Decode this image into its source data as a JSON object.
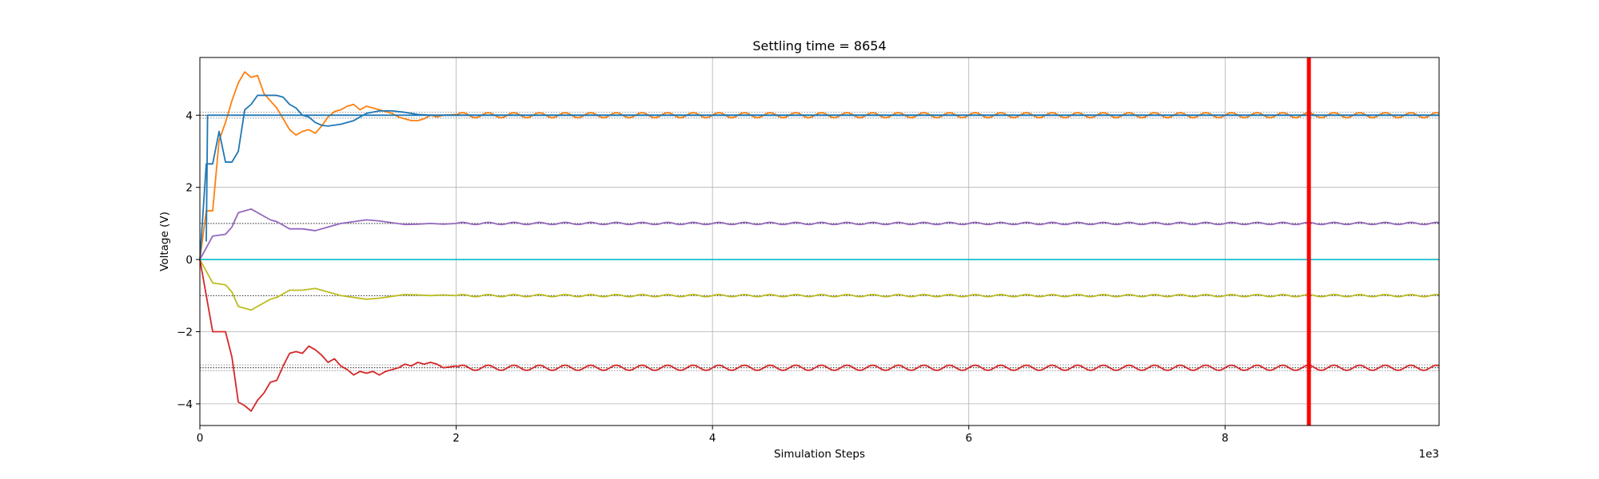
{
  "chart_data": {
    "type": "line",
    "title": "Settling time = 8654",
    "xlabel": "Simulation Steps",
    "ylabel": "Voltage (V)",
    "x_offset_label": "1e3",
    "xlim": [
      0,
      9670
    ],
    "ylim": [
      -4.6,
      5.6
    ],
    "x_ticks": [
      0,
      2000,
      4000,
      6000,
      8000
    ],
    "x_tick_labels": [
      "0",
      "2",
      "4",
      "6",
      "8"
    ],
    "y_ticks": [
      -4,
      -2,
      0,
      2,
      4
    ],
    "y_tick_labels": [
      "−4",
      "−2",
      "0",
      "2",
      "4"
    ],
    "grid": true,
    "settling_marker": {
      "x": 8654,
      "color": "#ff0000"
    },
    "reference_lines": [
      {
        "y": 4.08,
        "color": "#808080"
      },
      {
        "y": 4.0,
        "color": "#000000"
      },
      {
        "y": 3.92,
        "color": "#808080"
      },
      {
        "y": 1.0,
        "color": "#000000"
      },
      {
        "y": -1.0,
        "color": "#000000"
      },
      {
        "y": -2.92,
        "color": "#808080"
      },
      {
        "y": -3.0,
        "color": "#000000"
      },
      {
        "y": -3.08,
        "color": "#808080"
      }
    ],
    "series": [
      {
        "color": "#ff7f0e",
        "x": [
          0,
          50,
          100,
          150,
          200,
          250,
          300,
          350,
          400,
          450,
          500,
          550,
          600,
          650,
          700,
          750,
          800,
          850,
          900,
          950,
          1000,
          1050,
          1100,
          1150,
          1200,
          1250,
          1300,
          1350,
          1400,
          1450,
          1500,
          1550,
          1600,
          1650,
          1700,
          1750,
          1800,
          1850,
          1900,
          2000
        ],
        "y": [
          0,
          1.35,
          1.35,
          3.3,
          3.8,
          4.4,
          4.9,
          5.2,
          5.05,
          5.1,
          4.6,
          4.4,
          4.2,
          3.9,
          3.6,
          3.45,
          3.55,
          3.6,
          3.5,
          3.7,
          3.95,
          4.1,
          4.15,
          4.25,
          4.3,
          4.15,
          4.25,
          4.2,
          4.15,
          4.1,
          4.05,
          3.95,
          3.9,
          3.85,
          3.85,
          3.9,
          4.0,
          3.95,
          4.0,
          4.02
        ],
        "oscillation": {
          "center": 4.0,
          "amplitude": 0.07,
          "period": 200,
          "from_x": 2000
        }
      },
      {
        "color": "#1f77b4",
        "x": [
          0,
          50,
          100,
          150,
          200,
          250,
          300,
          350,
          400,
          450,
          500,
          550,
          600,
          650,
          700,
          750,
          800,
          850,
          900,
          950,
          1000,
          1100,
          1200,
          1300,
          1400,
          1500,
          1600,
          1700,
          1800,
          1900,
          2000
        ],
        "y": [
          0,
          2.65,
          2.65,
          3.55,
          2.7,
          2.7,
          3.0,
          4.15,
          4.3,
          4.55,
          4.55,
          4.55,
          4.55,
          4.5,
          4.3,
          4.2,
          4.0,
          3.95,
          3.8,
          3.72,
          3.7,
          3.75,
          3.85,
          4.05,
          4.12,
          4.12,
          4.08,
          4.02,
          4.0,
          4.0,
          4.0
        ],
        "oscillation": {
          "center": 4.0,
          "amplitude": 0.0,
          "period": 200,
          "from_x": 2000
        }
      },
      {
        "color": "#1f77b4",
        "x": [
          50,
          60,
          80,
          100,
          140
        ],
        "y": [
          0.5,
          4.0,
          4.0,
          4.0,
          4.0
        ],
        "oscillation": {
          "center": 4.0,
          "amplitude": 0.0,
          "period": 200,
          "from_x": 140
        }
      },
      {
        "color": "#9467bd",
        "x": [
          0,
          100,
          200,
          250,
          300,
          350,
          400,
          500,
          550,
          600,
          700,
          800,
          900,
          1000,
          1100,
          1200,
          1300,
          1400,
          1500,
          1600,
          1700,
          1800,
          1900,
          2000
        ],
        "y": [
          0,
          0.65,
          0.7,
          0.9,
          1.3,
          1.35,
          1.4,
          1.2,
          1.1,
          1.05,
          0.85,
          0.85,
          0.8,
          0.9,
          1.0,
          1.05,
          1.1,
          1.07,
          1.02,
          0.97,
          0.98,
          1.0,
          0.98,
          1.0
        ],
        "oscillation": {
          "center": 1.0,
          "amplitude": 0.03,
          "period": 200,
          "from_x": 2000
        }
      },
      {
        "color": "#17becf",
        "x": [
          0,
          9670
        ],
        "y": [
          0,
          0
        ]
      },
      {
        "color": "#bcbd22",
        "x": [
          0,
          100,
          200,
          250,
          300,
          350,
          400,
          500,
          550,
          600,
          700,
          800,
          900,
          1000,
          1100,
          1200,
          1300,
          1400,
          1500,
          1600,
          1700,
          1800,
          1900,
          2000
        ],
        "y": [
          0,
          -0.65,
          -0.7,
          -0.9,
          -1.3,
          -1.35,
          -1.4,
          -1.2,
          -1.1,
          -1.05,
          -0.85,
          -0.85,
          -0.8,
          -0.9,
          -1.0,
          -1.05,
          -1.1,
          -1.07,
          -1.02,
          -0.97,
          -0.98,
          -1.0,
          -0.98,
          -1.0
        ],
        "oscillation": {
          "center": -1.0,
          "amplitude": 0.03,
          "period": 200,
          "from_x": 2000
        }
      },
      {
        "color": "#d62728",
        "x": [
          0,
          100,
          200,
          250,
          300,
          350,
          400,
          450,
          500,
          550,
          600,
          650,
          700,
          750,
          800,
          850,
          900,
          950,
          1000,
          1050,
          1100,
          1150,
          1200,
          1250,
          1300,
          1350,
          1400,
          1450,
          1500,
          1550,
          1600,
          1650,
          1700,
          1750,
          1800,
          1850,
          1900,
          2000
        ],
        "y": [
          0,
          -2.0,
          -2.0,
          -2.7,
          -3.95,
          -4.05,
          -4.2,
          -3.9,
          -3.7,
          -3.4,
          -3.35,
          -2.95,
          -2.6,
          -2.55,
          -2.6,
          -2.4,
          -2.5,
          -2.65,
          -2.85,
          -2.75,
          -2.95,
          -3.05,
          -3.2,
          -3.1,
          -3.15,
          -3.1,
          -3.2,
          -3.1,
          -3.05,
          -3.0,
          -2.9,
          -2.95,
          -2.85,
          -2.9,
          -2.85,
          -2.9,
          -3.0,
          -2.95
        ],
        "oscillation": {
          "center": -3.0,
          "amplitude": 0.07,
          "period": 200,
          "from_x": 2000
        }
      }
    ]
  }
}
